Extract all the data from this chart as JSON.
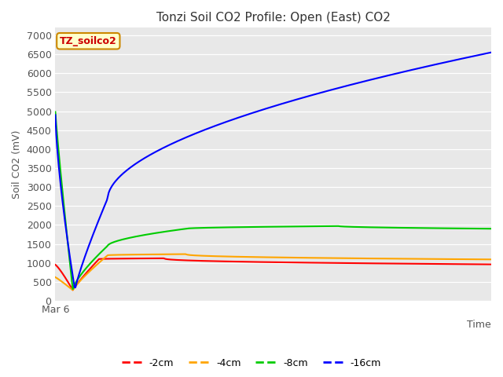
{
  "title": "Tonzi Soil CO2 Profile: Open (East) CO2",
  "ylabel": "Soil CO2 (mV)",
  "xlabel": "Time",
  "watermark": "TZ_soilco2",
  "ylim": [
    0,
    7200
  ],
  "yticks": [
    0,
    500,
    1000,
    1500,
    2000,
    2500,
    3000,
    3500,
    4000,
    4500,
    5000,
    5500,
    6000,
    6500,
    7000
  ],
  "x_start_label": "Mar 6",
  "colors": {
    "-2cm": "#ff0000",
    "-4cm": "#ffa500",
    "-8cm": "#00cc00",
    "-16cm": "#0000ff"
  },
  "legend_labels": [
    "-2cm",
    "-4cm",
    "-8cm",
    "-16cm"
  ],
  "plot_bg_color": "#e8e8e8",
  "fig_bg_color": "#ffffff",
  "n_points": 500
}
